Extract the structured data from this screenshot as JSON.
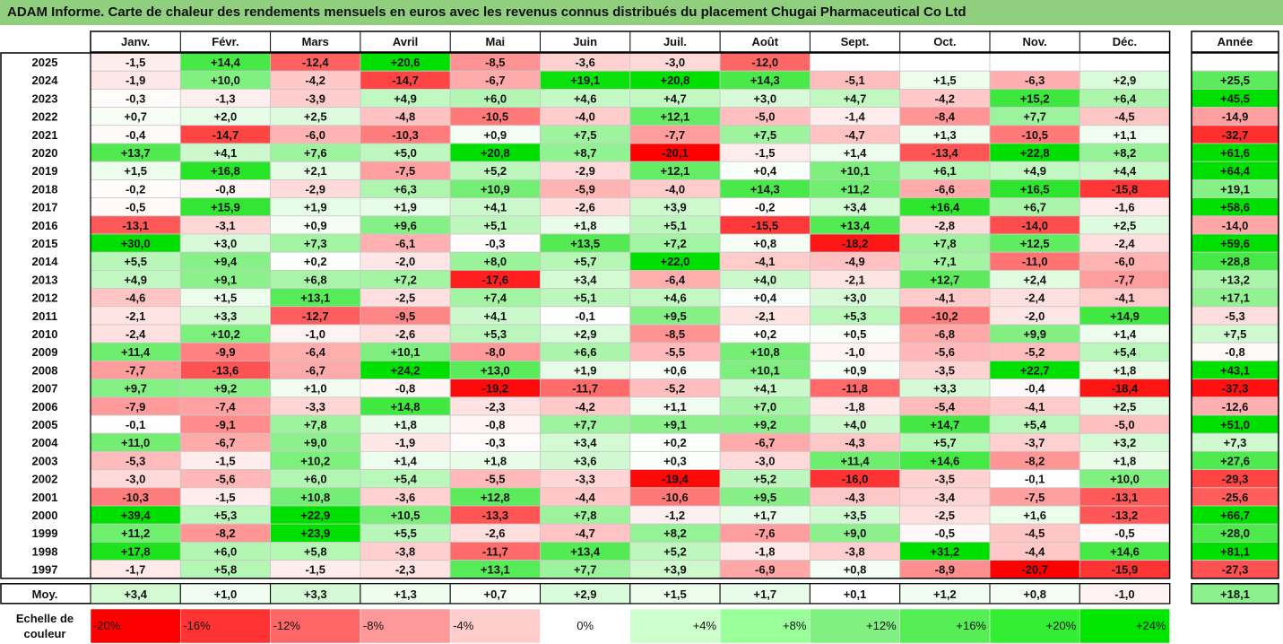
{
  "title": "ADAM Informe. Carte de chaleur des rendements mensuels en euros avec les revenus connus distribués du placement Chugai Pharmaceutical Co Ltd",
  "chart_data": {
    "type": "heatmap",
    "columns": [
      "Janv.",
      "Févr.",
      "Mars",
      "Avril",
      "Mai",
      "Juin",
      "Juil.",
      "Août",
      "Sept.",
      "Oct.",
      "Nov.",
      "Déc."
    ],
    "year_column": "Année",
    "rows": [
      {
        "year": "2025",
        "values": [
          -1.5,
          14.4,
          -12.4,
          20.6,
          -8.5,
          -3.6,
          -3.0,
          -12.0,
          null,
          null,
          null,
          null
        ],
        "annual": null
      },
      {
        "year": "2024",
        "values": [
          -1.9,
          10.0,
          -4.2,
          -14.7,
          -6.7,
          19.1,
          20.8,
          14.3,
          -5.1,
          1.5,
          -6.3,
          2.9
        ],
        "annual": 25.5
      },
      {
        "year": "2023",
        "values": [
          -0.3,
          -1.3,
          -3.9,
          4.9,
          6.0,
          4.6,
          4.7,
          3.0,
          4.7,
          -4.2,
          15.2,
          6.4
        ],
        "annual": 45.5
      },
      {
        "year": "2022",
        "values": [
          0.7,
          2.0,
          2.5,
          -4.8,
          -10.5,
          -4.0,
          12.1,
          -5.0,
          -1.4,
          -8.4,
          7.7,
          -4.5
        ],
        "annual": -14.9
      },
      {
        "year": "2021",
        "values": [
          -0.4,
          -14.7,
          -6.0,
          -10.3,
          0.9,
          7.5,
          -7.7,
          7.5,
          -4.7,
          1.3,
          -10.5,
          1.1
        ],
        "annual": -32.7
      },
      {
        "year": "2020",
        "values": [
          13.7,
          4.1,
          7.6,
          5.0,
          20.8,
          8.7,
          -20.1,
          -1.5,
          1.4,
          -13.4,
          22.8,
          8.2
        ],
        "annual": 61.6
      },
      {
        "year": "2019",
        "values": [
          1.5,
          16.8,
          2.1,
          -7.5,
          5.2,
          -2.9,
          12.1,
          0.4,
          10.1,
          6.1,
          4.9,
          4.4
        ],
        "annual": 64.4
      },
      {
        "year": "2018",
        "values": [
          -0.2,
          -0.8,
          -2.9,
          6.3,
          10.9,
          -5.9,
          -4.0,
          14.3,
          11.2,
          -6.6,
          16.5,
          -15.8
        ],
        "annual": 19.1
      },
      {
        "year": "2017",
        "values": [
          -0.5,
          15.9,
          1.9,
          1.9,
          4.1,
          -2.6,
          3.9,
          -0.2,
          3.4,
          16.4,
          6.7,
          -1.6
        ],
        "annual": 58.6
      },
      {
        "year": "2016",
        "values": [
          -13.1,
          -3.1,
          0.9,
          9.6,
          5.1,
          1.8,
          5.1,
          -15.5,
          13.4,
          -2.8,
          -14.0,
          2.5
        ],
        "annual": -14.0
      },
      {
        "year": "2015",
        "values": [
          30.0,
          3.0,
          7.3,
          -6.1,
          -0.3,
          13.5,
          7.2,
          0.8,
          -18.2,
          7.8,
          12.5,
          -2.4
        ],
        "annual": 59.6
      },
      {
        "year": "2014",
        "values": [
          5.5,
          9.4,
          0.2,
          -2.0,
          8.0,
          5.7,
          22.0,
          -4.1,
          -4.9,
          7.1,
          -11.0,
          -6.0
        ],
        "annual": 28.8
      },
      {
        "year": "2013",
        "values": [
          4.9,
          9.1,
          6.8,
          7.2,
          -17.6,
          3.4,
          -6.4,
          4.0,
          -2.1,
          12.7,
          2.4,
          -7.7
        ],
        "annual": 13.2
      },
      {
        "year": "2012",
        "values": [
          -4.6,
          1.5,
          13.1,
          -2.5,
          7.4,
          5.1,
          4.6,
          0.4,
          3.0,
          -4.1,
          -2.4,
          -4.1
        ],
        "annual": 17.1
      },
      {
        "year": "2011",
        "values": [
          -2.1,
          3.3,
          -12.7,
          -9.5,
          4.1,
          -0.1,
          9.5,
          -2.1,
          5.3,
          -10.2,
          -2.0,
          14.9
        ],
        "annual": -5.3
      },
      {
        "year": "2010",
        "values": [
          -2.4,
          10.2,
          -1.0,
          -2.6,
          5.3,
          2.9,
          -8.5,
          0.2,
          0.5,
          -6.8,
          9.9,
          1.4
        ],
        "annual": 7.5
      },
      {
        "year": "2009",
        "values": [
          11.4,
          -9.9,
          -6.4,
          10.1,
          -8.0,
          6.6,
          -5.5,
          10.8,
          -1.0,
          -5.6,
          -5.2,
          5.4
        ],
        "annual": -0.8
      },
      {
        "year": "2008",
        "values": [
          -7.7,
          -13.6,
          -6.7,
          24.2,
          13.0,
          1.9,
          0.6,
          10.1,
          0.9,
          -3.5,
          22.7,
          1.8
        ],
        "annual": 43.1
      },
      {
        "year": "2007",
        "values": [
          9.7,
          9.2,
          1.0,
          -0.8,
          -19.2,
          -11.7,
          -5.2,
          4.1,
          -11.8,
          3.3,
          -0.4,
          -18.4
        ],
        "annual": -37.3
      },
      {
        "year": "2006",
        "values": [
          -7.9,
          -7.4,
          -3.3,
          14.8,
          -2.3,
          -4.2,
          1.1,
          7.0,
          -1.8,
          -5.4,
          -4.1,
          2.5
        ],
        "annual": -12.6
      },
      {
        "year": "2005",
        "values": [
          -0.1,
          -9.1,
          7.8,
          1.8,
          -0.8,
          7.7,
          9.1,
          9.2,
          4.0,
          14.7,
          5.4,
          -5.0
        ],
        "annual": 51.0
      },
      {
        "year": "2004",
        "values": [
          11.0,
          -6.7,
          9.0,
          -1.9,
          -0.3,
          3.4,
          0.2,
          -6.7,
          -4.3,
          5.7,
          -3.7,
          3.2
        ],
        "annual": 7.3
      },
      {
        "year": "2003",
        "values": [
          -5.3,
          -1.5,
          10.2,
          1.4,
          1.8,
          3.6,
          0.3,
          -3.0,
          11.4,
          14.6,
          -8.2,
          1.8
        ],
        "annual": 27.6
      },
      {
        "year": "2002",
        "values": [
          -3.0,
          -5.6,
          6.0,
          5.4,
          -5.5,
          -3.3,
          -19.4,
          5.2,
          -16.0,
          -3.5,
          -0.1,
          10.0
        ],
        "annual": -29.3
      },
      {
        "year": "2001",
        "values": [
          -10.3,
          -1.5,
          10.8,
          -3.6,
          12.8,
          -4.4,
          -10.6,
          9.5,
          -4.3,
          -3.4,
          -7.5,
          -13.1
        ],
        "annual": -25.6
      },
      {
        "year": "2000",
        "values": [
          39.4,
          5.3,
          22.9,
          10.5,
          -13.3,
          7.8,
          -1.2,
          1.7,
          3.5,
          -2.5,
          1.6,
          -13.2
        ],
        "annual": 66.7
      },
      {
        "year": "1999",
        "values": [
          11.2,
          -8.2,
          23.9,
          5.5,
          -2.6,
          -4.7,
          8.2,
          -7.6,
          9.0,
          -0.5,
          -4.5,
          -0.5
        ],
        "annual": 28.0
      },
      {
        "year": "1998",
        "values": [
          17.8,
          6.0,
          5.8,
          -3.8,
          -11.7,
          13.4,
          5.2,
          -1.8,
          -3.8,
          31.2,
          -4.4,
          14.6
        ],
        "annual": 81.1
      },
      {
        "year": "1997",
        "values": [
          -1.7,
          5.8,
          -1.5,
          -2.3,
          13.1,
          7.7,
          3.9,
          -6.9,
          0.8,
          -8.9,
          -20.7,
          -15.9
        ],
        "annual": -27.3
      }
    ],
    "average": {
      "label": "Moy.",
      "values": [
        3.4,
        1.0,
        3.3,
        1.3,
        0.7,
        2.9,
        1.5,
        1.7,
        0.1,
        1.2,
        0.8,
        -1.0
      ],
      "annual": 18.1
    },
    "scale": {
      "label_line1": "Echelle de",
      "label_line2": "couleur",
      "steps": [
        {
          "label": "-20%",
          "value": -20,
          "color": "#ff0000"
        },
        {
          "label": "-16%",
          "value": -16,
          "color": "#ff3333"
        },
        {
          "label": "-12%",
          "value": -12,
          "color": "#ff6666"
        },
        {
          "label": "-8%",
          "value": -8,
          "color": "#ff9999"
        },
        {
          "label": "-4%",
          "value": -4,
          "color": "#ffcccc"
        },
        {
          "label": "0%",
          "value": 0,
          "color": "#ffffff"
        },
        {
          "label": "+4%",
          "value": 4,
          "color": "#ccffcc"
        },
        {
          "label": "+8%",
          "value": 8,
          "color": "#99ff99"
        },
        {
          "label": "+12%",
          "value": 12,
          "color": "#80f080"
        },
        {
          "label": "+16%",
          "value": 16,
          "color": "#55ee55"
        },
        {
          "label": "+20%",
          "value": 20,
          "color": "#33ee33"
        },
        {
          "label": "+24%",
          "value": 24,
          "color": "#00e600"
        }
      ]
    },
    "colors": {
      "positive_max": "#00e000",
      "negative_max": "#ff0000",
      "neutral": "#ffffff",
      "title_bar": "#8fcf7e"
    }
  }
}
